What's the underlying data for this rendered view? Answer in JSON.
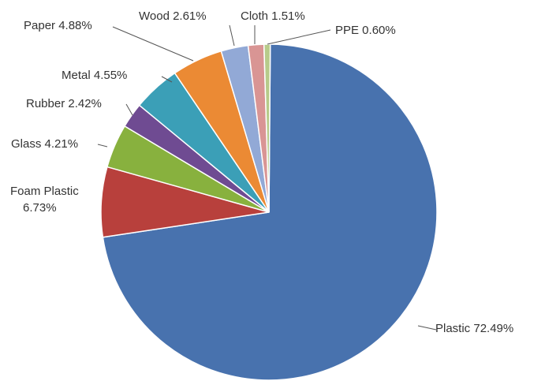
{
  "chart_data": {
    "type": "pie",
    "title": "",
    "slices": [
      {
        "name": "Plastic",
        "value": 72.49,
        "label": "Plastic  72.49%",
        "color": "#4872AE"
      },
      {
        "name": "Foam Plastic",
        "value": 6.73,
        "label": "Foam Plastic\n6.73%",
        "color": "#B8403C"
      },
      {
        "name": "Glass",
        "value": 4.21,
        "label": "Glass  4.21%",
        "color": "#88B13E"
      },
      {
        "name": "Rubber",
        "value": 2.42,
        "label": "Rubber  2.42%",
        "color": "#6F4B92"
      },
      {
        "name": "Metal",
        "value": 4.55,
        "label": "Metal  4.55%",
        "color": "#3B9FB7"
      },
      {
        "name": "Paper",
        "value": 4.88,
        "label": "Paper  4.88%",
        "color": "#EB8A34"
      },
      {
        "name": "Wood",
        "value": 2.61,
        "label": "Wood  2.61%",
        "color": "#92A9D6"
      },
      {
        "name": "Cloth",
        "value": 1.51,
        "label": "Cloth  1.51%",
        "color": "#D99594"
      },
      {
        "name": "PPE",
        "value": 0.6,
        "label": "PPE  0.60%",
        "color": "#B7CB8A"
      }
    ]
  }
}
